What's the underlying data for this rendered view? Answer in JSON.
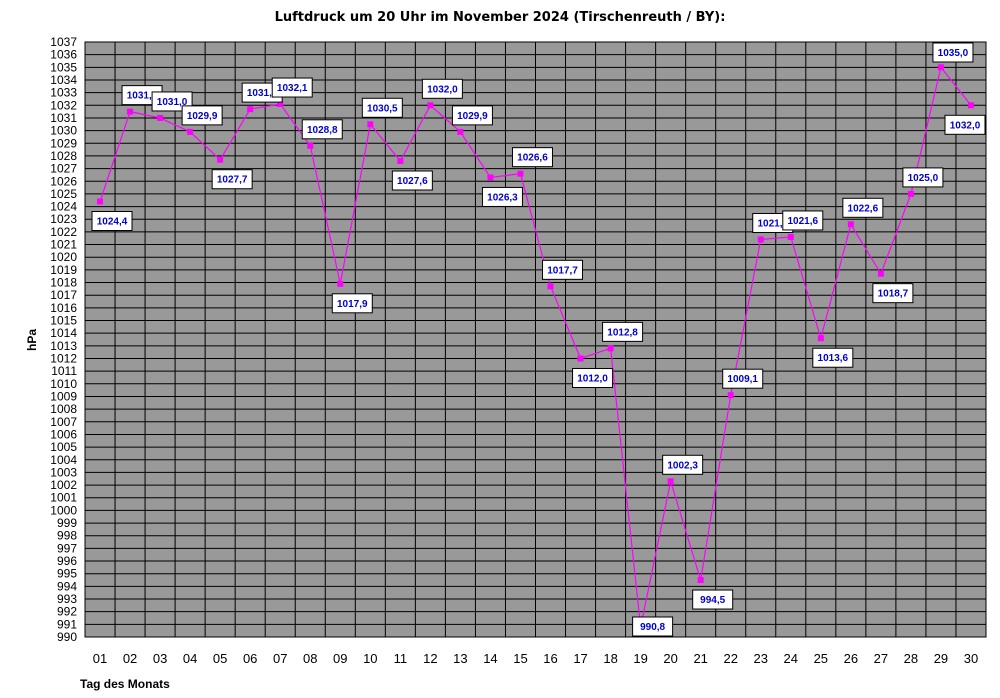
{
  "chart_data": {
    "type": "line",
    "title": "Luftdruck um 20 Uhr im November 2024 (Tirschenreuth / BY):",
    "xlabel": "Tag des Monats",
    "ylabel": "hPa",
    "ylim": [
      990,
      1037
    ],
    "categories": [
      "01",
      "02",
      "03",
      "04",
      "05",
      "06",
      "07",
      "08",
      "09",
      "10",
      "11",
      "12",
      "13",
      "14",
      "15",
      "16",
      "17",
      "18",
      "19",
      "20",
      "21",
      "22",
      "23",
      "24",
      "25",
      "26",
      "27",
      "28",
      "29",
      "30"
    ],
    "values": [
      1024.4,
      1031.5,
      1031.0,
      1029.9,
      1027.7,
      1031.7,
      1032.1,
      1028.8,
      1017.9,
      1030.5,
      1027.6,
      1032.0,
      1029.9,
      1026.3,
      1026.6,
      1017.7,
      1012.0,
      1012.8,
      990.8,
      1002.3,
      994.5,
      1009.1,
      1021.4,
      1021.6,
      1013.6,
      1022.6,
      1018.7,
      1025.0,
      1035.0,
      1032.0
    ],
    "data_labels": [
      "1024,4",
      "1031,5",
      "1031,0",
      "1029,9",
      "1027,7",
      "1031,7",
      "1032,1",
      "1028,8",
      "1017,9",
      "1030,5",
      "1027,6",
      "1032,0",
      "1029,9",
      "1026,3",
      "1026,6",
      "1017,7",
      "1012,0",
      "1012,8",
      "990,8",
      "1002,3",
      "994,5",
      "1009,1",
      "1021,4",
      "1021,6",
      "1013,6",
      "1022,6",
      "1018,7",
      "1025,0",
      "1035,0",
      "1032,0"
    ],
    "grid": true,
    "legend": "none",
    "colors": {
      "line": "#ff00ff",
      "marker": "#ff00ff",
      "plot_bg": "#999999",
      "grid": "#000000",
      "label_text": "#0000cc"
    }
  }
}
